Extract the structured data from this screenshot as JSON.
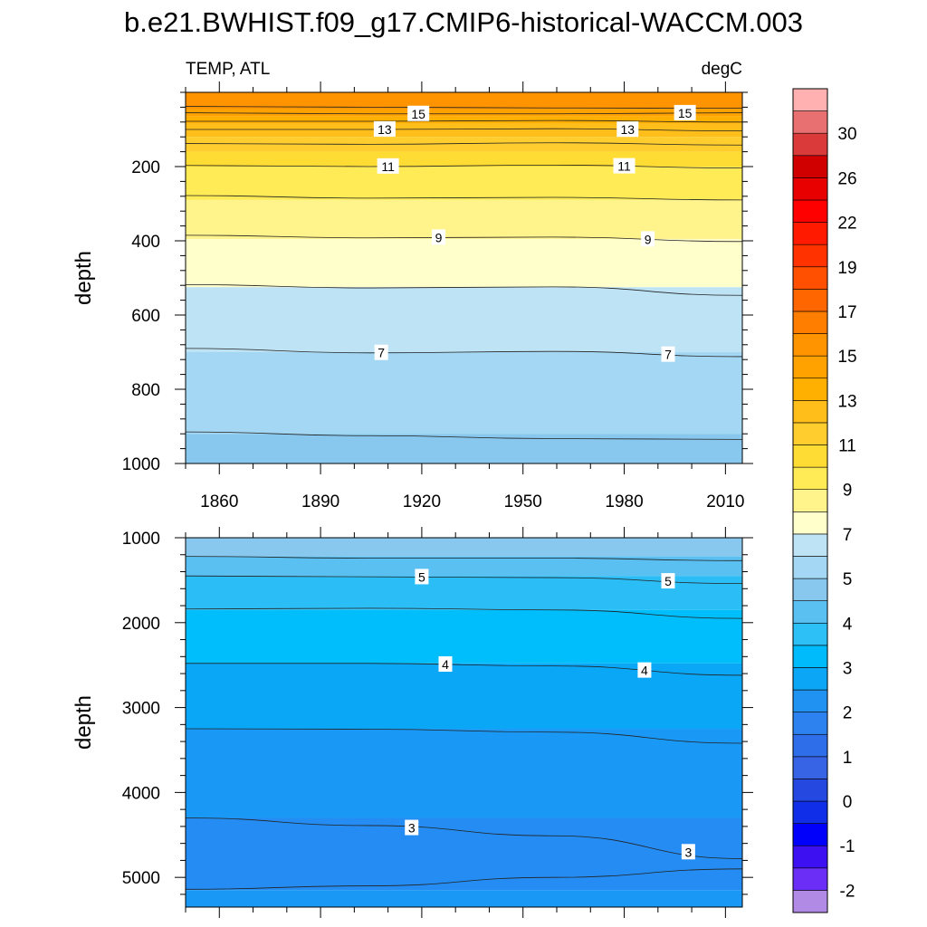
{
  "figure": {
    "title": "b.e21.BWHIST.f09_g17.CMIP6-historical-WACCM.003",
    "left_subtitle": "TEMP, ATL",
    "right_subtitle": "degC"
  },
  "chart_data": [
    {
      "type": "heatmap",
      "panel": "upper",
      "ylabel": "depth",
      "xlabel": "",
      "xlim": [
        1850,
        2015
      ],
      "ylim": [
        1000,
        0
      ],
      "y_reversed": true,
      "x_ticks": [
        1860,
        1890,
        1920,
        1950,
        1980,
        2010
      ],
      "y_ticks": [
        200,
        400,
        600,
        800,
        1000
      ],
      "colors_by_depth": [
        {
          "from": 0,
          "to": 45,
          "color": "#FF9400"
        },
        {
          "from": 45,
          "to": 65,
          "color": "#FFA200"
        },
        {
          "from": 65,
          "to": 85,
          "color": "#FFB000"
        },
        {
          "from": 85,
          "to": 120,
          "color": "#FFBE1A"
        },
        {
          "from": 120,
          "to": 160,
          "color": "#FFCD2E"
        },
        {
          "from": 160,
          "to": 200,
          "color": "#FFDC33"
        },
        {
          "from": 200,
          "to": 290,
          "color": "#FFEB55"
        },
        {
          "from": 290,
          "to": 395,
          "color": "#FFF38C"
        },
        {
          "from": 395,
          "to": 525,
          "color": "#FFFFCC"
        },
        {
          "from": 525,
          "to": 700,
          "color": "#BEE3F5"
        },
        {
          "from": 700,
          "to": 920,
          "color": "#A3D7F3"
        },
        {
          "from": 920,
          "to": 1000,
          "color": "#88C8EE"
        }
      ],
      "contours": [
        {
          "level": 16,
          "y": [
            38,
            40,
            42,
            43
          ],
          "labels": []
        },
        {
          "level": 15,
          "y": [
            55,
            58,
            58,
            55
          ],
          "labels": [
            {
              "x": 1919,
              "text": "15"
            },
            {
              "x": 1998,
              "text": "15"
            }
          ]
        },
        {
          "level": 14,
          "y": [
            78,
            78,
            76,
            80
          ],
          "labels": []
        },
        {
          "level": 13,
          "y": [
            100,
            100,
            98,
            104
          ],
          "labels": [
            {
              "x": 1909,
              "text": "13"
            },
            {
              "x": 1981,
              "text": "13"
            }
          ]
        },
        {
          "level": 12,
          "y": [
            138,
            140,
            136,
            142
          ],
          "labels": []
        },
        {
          "level": 11,
          "y": [
            197,
            200,
            196,
            204
          ],
          "labels": [
            {
              "x": 1910,
              "text": "11"
            },
            {
              "x": 1980,
              "text": "11"
            }
          ]
        },
        {
          "level": 10,
          "y": [
            278,
            285,
            283,
            290
          ],
          "labels": []
        },
        {
          "level": 9,
          "y": [
            385,
            392,
            390,
            402
          ],
          "labels": [
            {
              "x": 1925,
              "text": "9"
            },
            {
              "x": 1987,
              "text": "9"
            }
          ]
        },
        {
          "level": 8,
          "y": [
            518,
            527,
            524,
            547
          ],
          "labels": []
        },
        {
          "level": 7,
          "y": [
            690,
            702,
            698,
            712
          ],
          "labels": [
            {
              "x": 1908,
              "text": "7"
            },
            {
              "x": 1993,
              "text": "7"
            }
          ]
        },
        {
          "level": 6,
          "y": [
            915,
            925,
            933,
            935
          ],
          "labels": []
        }
      ]
    },
    {
      "type": "heatmap",
      "panel": "lower",
      "ylabel": "depth",
      "xlabel": "",
      "xlim": [
        1850,
        2015
      ],
      "ylim": [
        5350,
        1000
      ],
      "y_reversed": true,
      "y_ticks": [
        1000,
        2000,
        3000,
        4000,
        5000
      ],
      "colors_by_depth": [
        {
          "from": 1000,
          "to": 1220,
          "color": "#88C8EE"
        },
        {
          "from": 1220,
          "to": 1450,
          "color": "#5AC0F2"
        },
        {
          "from": 1450,
          "to": 1850,
          "color": "#2BBEF6"
        },
        {
          "from": 1850,
          "to": 2480,
          "color": "#00BDFB"
        },
        {
          "from": 2480,
          "to": 3250,
          "color": "#0BA7F7"
        },
        {
          "from": 3250,
          "to": 4300,
          "color": "#1A98F5"
        },
        {
          "from": 4300,
          "to": 5150,
          "color": "#248CF2"
        },
        {
          "from": 5150,
          "to": 5350,
          "color": "#1A98F5"
        }
      ],
      "contours": [
        {
          "level": 5.5,
          "y": [
            1220,
            1240,
            1240,
            1270
          ],
          "labels": []
        },
        {
          "level": 5,
          "y": [
            1450,
            1460,
            1470,
            1540
          ],
          "labels": [
            {
              "x": 1920,
              "text": "5"
            },
            {
              "x": 1993,
              "text": "5"
            }
          ]
        },
        {
          "level": 4.5,
          "y": [
            1840,
            1830,
            1850,
            1950
          ],
          "labels": []
        },
        {
          "level": 4,
          "y": [
            2480,
            2480,
            2510,
            2620
          ],
          "labels": [
            {
              "x": 1927,
              "text": "4"
            },
            {
              "x": 1986,
              "text": "4"
            }
          ]
        },
        {
          "level": 3.5,
          "y": [
            3250,
            3255,
            3290,
            3420
          ],
          "labels": []
        },
        {
          "level": 3,
          "y": [
            4300,
            4390,
            4510,
            4780
          ],
          "labels": [
            {
              "x": 1917,
              "text": "3"
            },
            {
              "x": 1999,
              "text": "3"
            }
          ]
        },
        {
          "level": 2.5,
          "y": [
            5140,
            5100,
            5000,
            4900
          ],
          "labels": []
        }
      ]
    }
  ],
  "colorbar": {
    "colors": [
      "#B08AE4",
      "#6A2EF7",
      "#3D10F2",
      "#0000FB",
      "#102EE8",
      "#2548E0",
      "#3664E5",
      "#2E6EE8",
      "#2E82F0",
      "#2092F2",
      "#0CA6F7",
      "#00BBFB",
      "#2CC0F7",
      "#5AC0F2",
      "#88C8EE",
      "#A3D7F3",
      "#BEE3F5",
      "#FFFFCC",
      "#FFF38C",
      "#FFEB55",
      "#FFDC33",
      "#FFCD2E",
      "#FFBE1A",
      "#FFB000",
      "#FFA200",
      "#FF9400",
      "#FF7E00",
      "#FF6600",
      "#FF4F00",
      "#FF3200",
      "#FF1A00",
      "#FF0000",
      "#E80000",
      "#D00000",
      "#DA3A3A",
      "#E87070",
      "#FFB0B0"
    ],
    "labels": [
      "-2",
      "-1",
      "0",
      "1",
      "2",
      "3",
      "4",
      "5",
      "7",
      "9",
      "11",
      "13",
      "15",
      "17",
      "19",
      "22",
      "26",
      "30"
    ]
  }
}
